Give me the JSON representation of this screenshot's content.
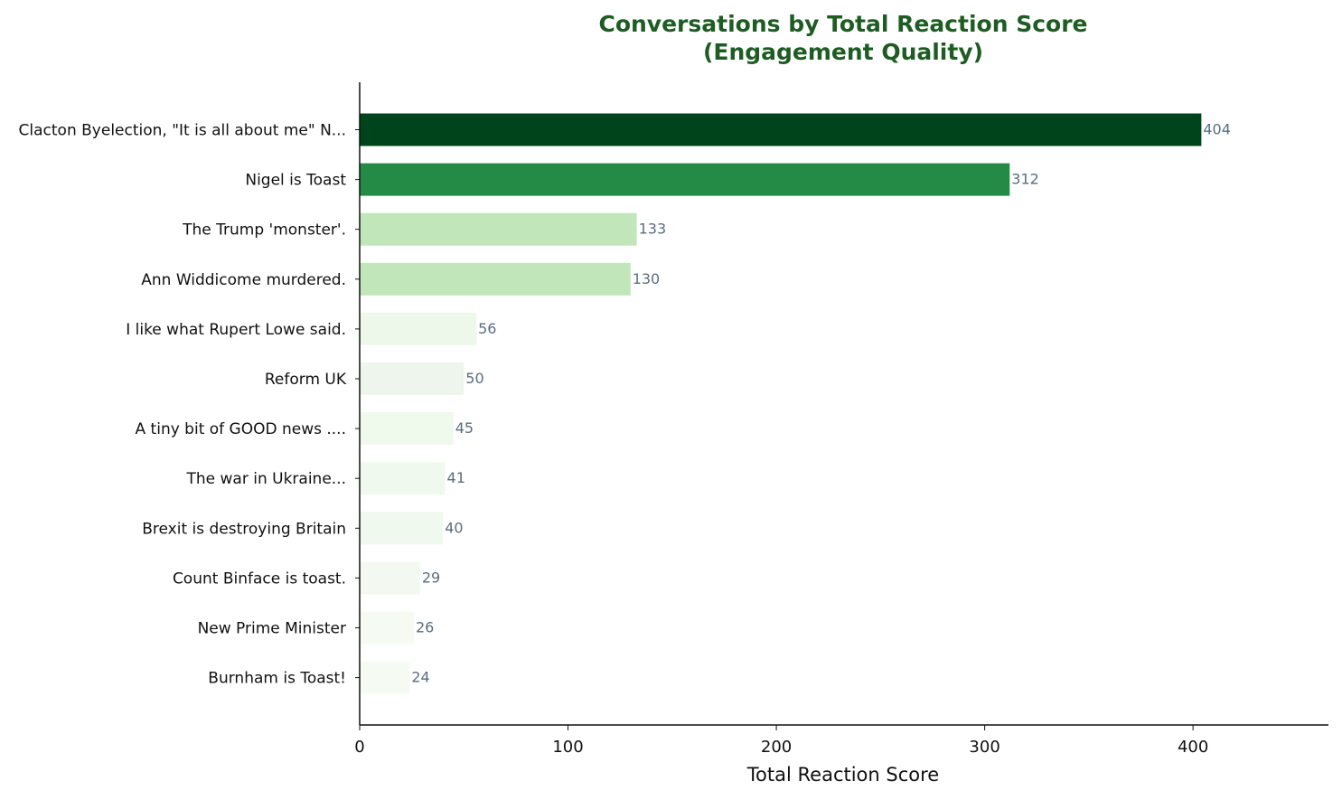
{
  "colors": {
    "title": "#1e5c24",
    "value_label": "#5a6e7e",
    "axis": "#111111"
  },
  "chart_data": {
    "type": "bar",
    "orientation": "horizontal",
    "title": [
      "Conversations by Total Reaction Score",
      "(Engagement Quality)"
    ],
    "xlabel": "Total Reaction Score",
    "ylabel": "",
    "xlim": [
      0,
      465
    ],
    "xticks": [
      0,
      100,
      200,
      300,
      400
    ],
    "grid": false,
    "legend": "none",
    "categories": [
      "Clacton Byelection, \"It is all about me\" N...",
      "Nigel is Toast",
      "The Trump 'monster'.",
      "Ann Widdicome murdered.",
      "I like what Rupert Lowe said.",
      "Reform UK",
      "A tiny bit of GOOD news ....",
      "The war in Ukraine...",
      "Brexit is destroying Britain",
      "Count Binface is toast.",
      "New Prime Minister",
      "Burnham is Toast!"
    ],
    "values": [
      404,
      312,
      133,
      130,
      56,
      50,
      45,
      41,
      40,
      29,
      26,
      24
    ],
    "bar_colors": [
      "#00441b",
      "#238b45",
      "#c0e6ba",
      "#c0e6ba",
      "#edf7ea",
      "#eef5ec",
      "#eff9ec",
      "#f0f9ed",
      "#f0f9ed",
      "#f3f9f1",
      "#f5fbf3",
      "#f5fbf3"
    ]
  }
}
